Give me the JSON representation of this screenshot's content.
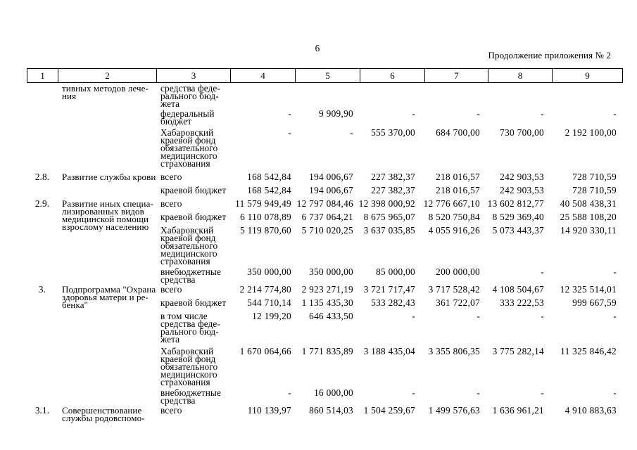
{
  "page": {
    "number": "6",
    "continuation": "Продолжение приложения № 2"
  },
  "table": {
    "header_cols": [
      "1",
      "2",
      "3",
      "4",
      "5",
      "6",
      "7",
      "8",
      "9"
    ],
    "items": [
      {
        "num": "",
        "name": "тивных методов лече-\nния",
        "subrows": [
          {
            "source": "средства феде-\nрального бюд-\nжета",
            "values": [
              "",
              "",
              "",
              "",
              "",
              ""
            ]
          },
          {
            "source": "федеральный\nбюджет",
            "values": [
              "-",
              "9 909,90",
              "-",
              "-",
              "-",
              "-"
            ]
          },
          {
            "source": "Хабаровский\nкраевой фонд\nобязательного\nмедицинского\nстрахования",
            "values": [
              "-",
              "-",
              "555 370,00",
              "684 700,00",
              "730 700,00",
              "2 192 100,00"
            ]
          }
        ]
      },
      {
        "num": "2.8.",
        "name": "Развитие службы крови",
        "subrows": [
          {
            "source": "всего",
            "values": [
              "168 542,84",
              "194 006,67",
              "227 382,37",
              "218 016,57",
              "242 903,53",
              "728 710,59"
            ]
          },
          {
            "source": "краевой бюджет",
            "values": [
              "168 542,84",
              "194 006,67",
              "227 382,37",
              "218 016,57",
              "242 903,53",
              "728 710,59"
            ]
          }
        ]
      },
      {
        "num": "2.9.",
        "name": "Развитие иных специа-\nлизированных видов\nмедицинской помощи\nвзрослому населению",
        "subrows": [
          {
            "source": "всего",
            "values": [
              "11 579 949,49",
              "12 797 084,46",
              "12 398 000,92",
              "12 776 667,10",
              "13 602 812,77",
              "40 508 438,31"
            ]
          },
          {
            "source": "краевой бюджет",
            "values": [
              "6 110 078,89",
              "6 737 064,21",
              "8 675 965,07",
              "8 520 750,84",
              "8 529 369,40",
              "25 588 108,20"
            ]
          },
          {
            "source": "Хабаровский\nкраевой фонд\nобязательного\nмедицинского\nстрахования",
            "values": [
              "5 119 870,60",
              "5 710 020,25",
              "3 637 035,85",
              "4 055 916,26",
              "5 073 443,37",
              "14 920 330,11"
            ]
          },
          {
            "source": "внебюджетные\nсредства",
            "values": [
              "350 000,00",
              "350 000,00",
              "85 000,00",
              "200 000,00",
              "-",
              "-"
            ]
          }
        ]
      },
      {
        "num": "3.",
        "name": "Подпрограмма \"Охрана\nздоровья матери и ре-\nбенка\"",
        "subrows": [
          {
            "source": "всего",
            "values": [
              "2 214 774,80",
              "2 923 271,19",
              "3 721 717,47",
              "3 717 528,42",
              "4 108 504,67",
              "12 325 514,01"
            ]
          },
          {
            "source": "краевой бюджет",
            "values": [
              "544 710,14",
              "1 135 435,30",
              "533 282,43",
              "361 722,07",
              "333 222,53",
              "999 667,59"
            ]
          },
          {
            "source": "в том числе\nсредства феде-\nрального бюд-\nжета",
            "values": [
              "12 199,20",
              "646 433,50",
              "-",
              "-",
              "-",
              "-"
            ]
          },
          {
            "source": "Хабаровский\nкраевой фонд\nобязательного\nмедицинского\nстрахования",
            "values": [
              "1 670 064,66",
              "1 771 835,89",
              "3 188 435,04",
              "3 355 806,35",
              "3 775 282,14",
              "11 325 846,42"
            ]
          },
          {
            "source": "внебюджетные\nсредства",
            "values": [
              "-",
              "16 000,00",
              "-",
              "-",
              "-",
              "-"
            ]
          }
        ]
      },
      {
        "num": "3.1.",
        "name": "Совершенствование\nслужбы родовспомо-",
        "subrows": [
          {
            "source": "всего",
            "values": [
              "110 139,97",
              "860 514,03",
              "1 504 259,67",
              "1 499 576,63",
              "1 636 961,21",
              "4 910 883,63"
            ]
          }
        ]
      }
    ]
  }
}
